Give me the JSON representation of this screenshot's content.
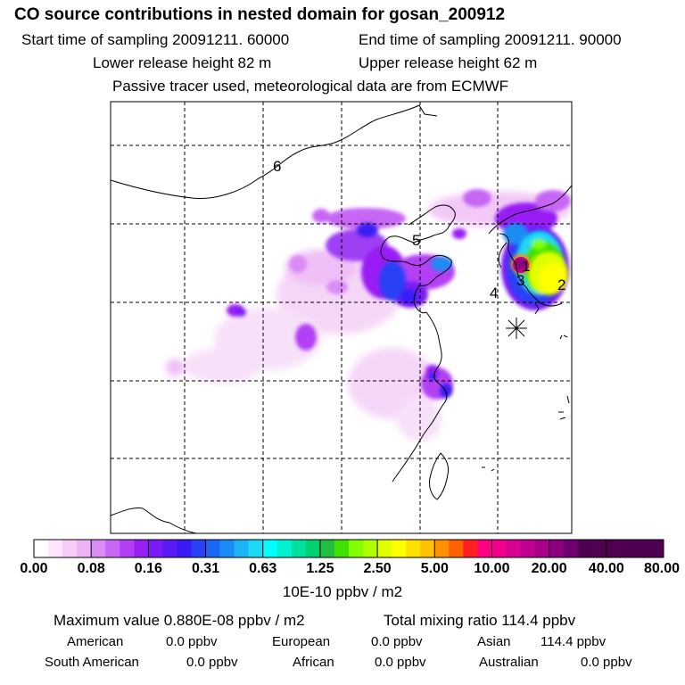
{
  "header": {
    "title": "CO  source contributions in nested domain for gosan_200912",
    "start_time": "Start time of sampling 20091211. 60000",
    "end_time": "End time of sampling 20091211. 90000",
    "lower_release": "Lower release height   82 m",
    "upper_release": "Upper release height   62 m",
    "note": "Passive tracer used, meteorological data are from ECMWF"
  },
  "map": {
    "region_labels": [
      "6",
      "5",
      "1",
      "3",
      "2",
      "4"
    ],
    "receptor_marker": "asterisk-icon"
  },
  "colorbar": {
    "tick_labels": [
      "0.00",
      "0.08",
      "0.16",
      "0.31",
      "0.63",
      "1.25",
      "2.50",
      "5.00",
      "10.00",
      "20.00",
      "40.00",
      "80.00"
    ],
    "unit": "10E-10 ppbv / m2",
    "colors": [
      "#ffffff",
      "#fde6fd",
      "#f7cdf7",
      "#eeb3f5",
      "#d98cf5",
      "#c766f5",
      "#b340f5",
      "#9a1ff5",
      "#7a1af5",
      "#5a1af5",
      "#3a1af5",
      "#2a40f5",
      "#1a66f5",
      "#1a8cf5",
      "#1ab3f5",
      "#1ad9f5",
      "#00ffff",
      "#00f0d0",
      "#00e0a0",
      "#00d070",
      "#20c040",
      "#40e000",
      "#80ff00",
      "#b0ff00",
      "#e0ff00",
      "#ffff00",
      "#ffe000",
      "#ffc000",
      "#ff9000",
      "#ff6000",
      "#ff2020",
      "#ff0080",
      "#f0008a",
      "#d80090",
      "#c00090",
      "#a80088",
      "#8c0080",
      "#700070",
      "#500050"
    ]
  },
  "summary": {
    "max_value": "Maximum value  0.880E-08 ppbv / m2",
    "total_mixing": "Total mixing ratio      114.4 ppbv",
    "rows": [
      [
        "American",
        "0.0 ppbv",
        "European",
        "0.0 ppbv",
        "Asian",
        "114.4 ppbv"
      ],
      [
        "South American",
        "0.0 ppbv",
        "African",
        "0.0 ppbv",
        "Australian",
        "0.0 ppbv"
      ]
    ]
  }
}
